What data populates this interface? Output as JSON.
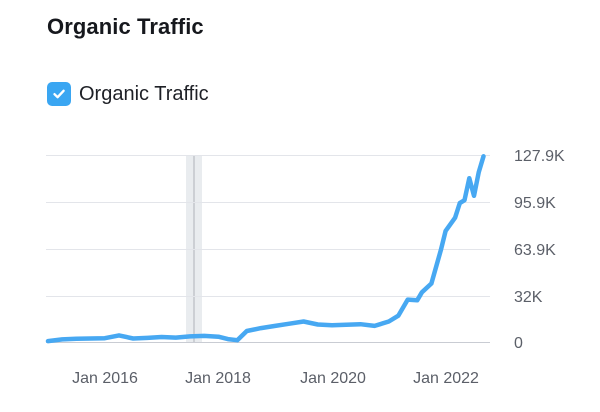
{
  "header": {
    "title": "Organic Traffic"
  },
  "legend": {
    "items": [
      {
        "label": "Organic Traffic",
        "checked": true,
        "color": "#3aa6f2",
        "icon": "checkmark-icon"
      }
    ]
  },
  "colors": {
    "line": "#47a8f2",
    "grid": "#e3e5ea",
    "axis": "#c9ccd3",
    "band": "#e9ecef",
    "marker": "#b8bcc3"
  },
  "chart_data": {
    "type": "line",
    "title": "Organic Traffic",
    "xlabel": "",
    "ylabel": "",
    "ylim": [
      0,
      127900
    ],
    "yticks": [
      "0",
      "32K",
      "63.9K",
      "95.9K",
      "127.9K"
    ],
    "xticks": [
      "Jan 2016",
      "Jan 2018",
      "Jan 2020",
      "Jan 2022"
    ],
    "grid": true,
    "legend_position": "top-left",
    "y_axis_position": "right",
    "annotation": "Vertical marker band around late 2017",
    "series": [
      {
        "name": "Organic Traffic",
        "x": [
          "2015-01",
          "2015-04",
          "2015-07",
          "2015-10",
          "2016-01",
          "2016-04",
          "2016-07",
          "2016-10",
          "2017-01",
          "2017-04",
          "2017-07",
          "2017-10",
          "2018-01",
          "2018-03",
          "2018-05",
          "2018-07",
          "2018-10",
          "2019-01",
          "2019-04",
          "2019-07",
          "2019-10",
          "2020-01",
          "2020-04",
          "2020-07",
          "2020-10",
          "2021-01",
          "2021-03",
          "2021-05",
          "2021-07",
          "2021-08",
          "2021-10",
          "2021-12",
          "2022-01",
          "2022-03",
          "2022-04",
          "2022-05",
          "2022-06",
          "2022-07",
          "2022-08",
          "2022-09"
        ],
        "values": [
          600,
          1800,
          2200,
          2400,
          2600,
          4500,
          2400,
          2800,
          3400,
          3000,
          3800,
          4200,
          3600,
          2000,
          1200,
          7500,
          9500,
          11000,
          12500,
          14000,
          12000,
          11500,
          11800,
          12200,
          11000,
          14000,
          18000,
          29000,
          28500,
          34000,
          40000,
          63000,
          76000,
          85000,
          95000,
          97000,
          112000,
          100000,
          116000,
          127000
        ]
      }
    ]
  }
}
